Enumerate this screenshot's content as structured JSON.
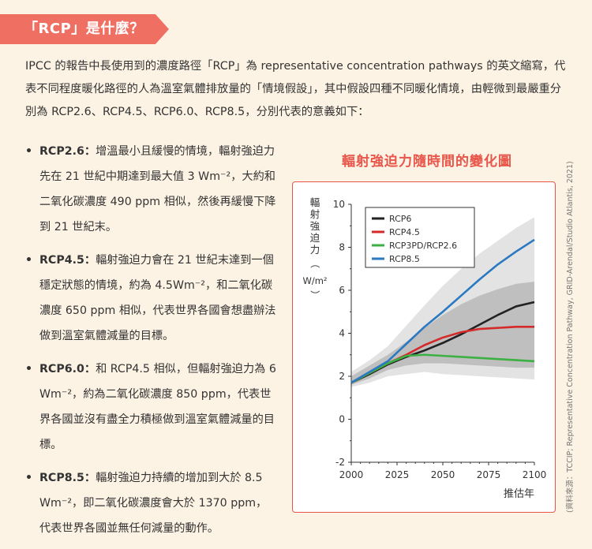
{
  "banner": {
    "title": "「RCP」是什麼？"
  },
  "intro": {
    "text": "IPCC 的報告中長使用到的濃度路徑「RCP」為 representative concentration pathways 的英文縮寫，代表不同程度暖化路徑的人為溫室氣體排放量的「情境假設」，其中假設四種不同暖化情境，由輕微到最嚴重分別為 RCP2.6、RCP4.5、RCP6.0、RCP8.5，分別代表的意義如下："
  },
  "bullets": [
    {
      "key": "RCP2.6：",
      "text": "增溫最小且緩慢的情境，輻射強迫力先在 21 世紀中期達到最大值 3 Wm⁻²，大約和二氧化碳濃度 490 ppm 相似，然後再緩慢下降到 21 世紀末。"
    },
    {
      "key": "RCP4.5：",
      "text": "輻射強迫力會在 21 世紀末達到一個穩定狀態的情境，約為 4.5Wm⁻²，和二氧化碳濃度 650 ppm 相似，代表世界各國會想盡辦法做到溫室氣體減量的目標。"
    },
    {
      "key": "RCP6.0：",
      "text": "和 RCP4.5 相似，但輻射強迫力為 6 Wm⁻²，約為二氧化碳濃度 850 ppm，代表世界各國並沒有盡全力積極做到溫室氣體減量的目標。"
    },
    {
      "key": "RCP8.5：",
      "text": "輻射強迫力持續的增加到大於 8.5 Wm⁻²，即二氧化碳濃度會大於 1370 ppm，代表世界各國並無任何減量的動作。"
    }
  ],
  "bullet_symbol": "•",
  "source": "(資料來源：TCCIP; Representative Concentration Pathway, GRID-Arendal/Studio Atlantis, 2021)",
  "chart_data": {
    "type": "line",
    "title": "輻射強迫力隨時間的變化圖",
    "ylabel": "輻射強迫力（W/m²）",
    "xlabel": "推估年",
    "xlim": [
      2000,
      2100
    ],
    "ylim": [
      -2,
      10
    ],
    "xticks": [
      2000,
      2025,
      2050,
      2075,
      2100
    ],
    "yticks": [
      -2,
      0,
      2,
      4,
      6,
      8,
      10
    ],
    "x": [
      2000,
      2010,
      2020,
      2030,
      2040,
      2050,
      2060,
      2070,
      2080,
      2090,
      2100
    ],
    "series": [
      {
        "name": "RCP6",
        "color": "#222222",
        "values": [
          1.7,
          2.1,
          2.55,
          2.9,
          3.2,
          3.55,
          3.95,
          4.4,
          4.85,
          5.25,
          5.45
        ]
      },
      {
        "name": "RCP4.5",
        "color": "#d42a2a",
        "values": [
          1.7,
          2.15,
          2.6,
          3.0,
          3.45,
          3.8,
          4.05,
          4.2,
          4.25,
          4.3,
          4.3
        ]
      },
      {
        "name": "RCP3PD/RCP2.6",
        "color": "#3cb043",
        "values": [
          1.7,
          2.15,
          2.6,
          2.95,
          3.0,
          2.95,
          2.9,
          2.85,
          2.8,
          2.75,
          2.7
        ]
      },
      {
        "name": "RCP8.5",
        "color": "#2b79c2",
        "values": [
          1.7,
          2.2,
          2.7,
          3.5,
          4.3,
          5.0,
          5.75,
          6.5,
          7.2,
          7.8,
          8.35
        ]
      }
    ],
    "bands": [
      {
        "shade": "#e3e3e3",
        "low": [
          1.5,
          1.7,
          2.0,
          2.1,
          2.2,
          2.1,
          2.05,
          2.0,
          1.95,
          1.9,
          1.85
        ],
        "high": [
          2.2,
          2.75,
          3.4,
          4.35,
          5.3,
          6.2,
          7.0,
          7.7,
          8.3,
          8.9,
          9.4
        ]
      },
      {
        "shade": "#bfbfbf",
        "low": [
          1.6,
          1.9,
          2.3,
          2.5,
          2.6,
          2.6,
          2.55,
          2.5,
          2.45,
          2.4,
          2.4
        ],
        "high": [
          2.0,
          2.5,
          3.0,
          3.6,
          4.25,
          4.85,
          5.35,
          5.75,
          6.05,
          6.3,
          6.4
        ]
      }
    ],
    "legend_position": "top-right",
    "grid": false
  }
}
